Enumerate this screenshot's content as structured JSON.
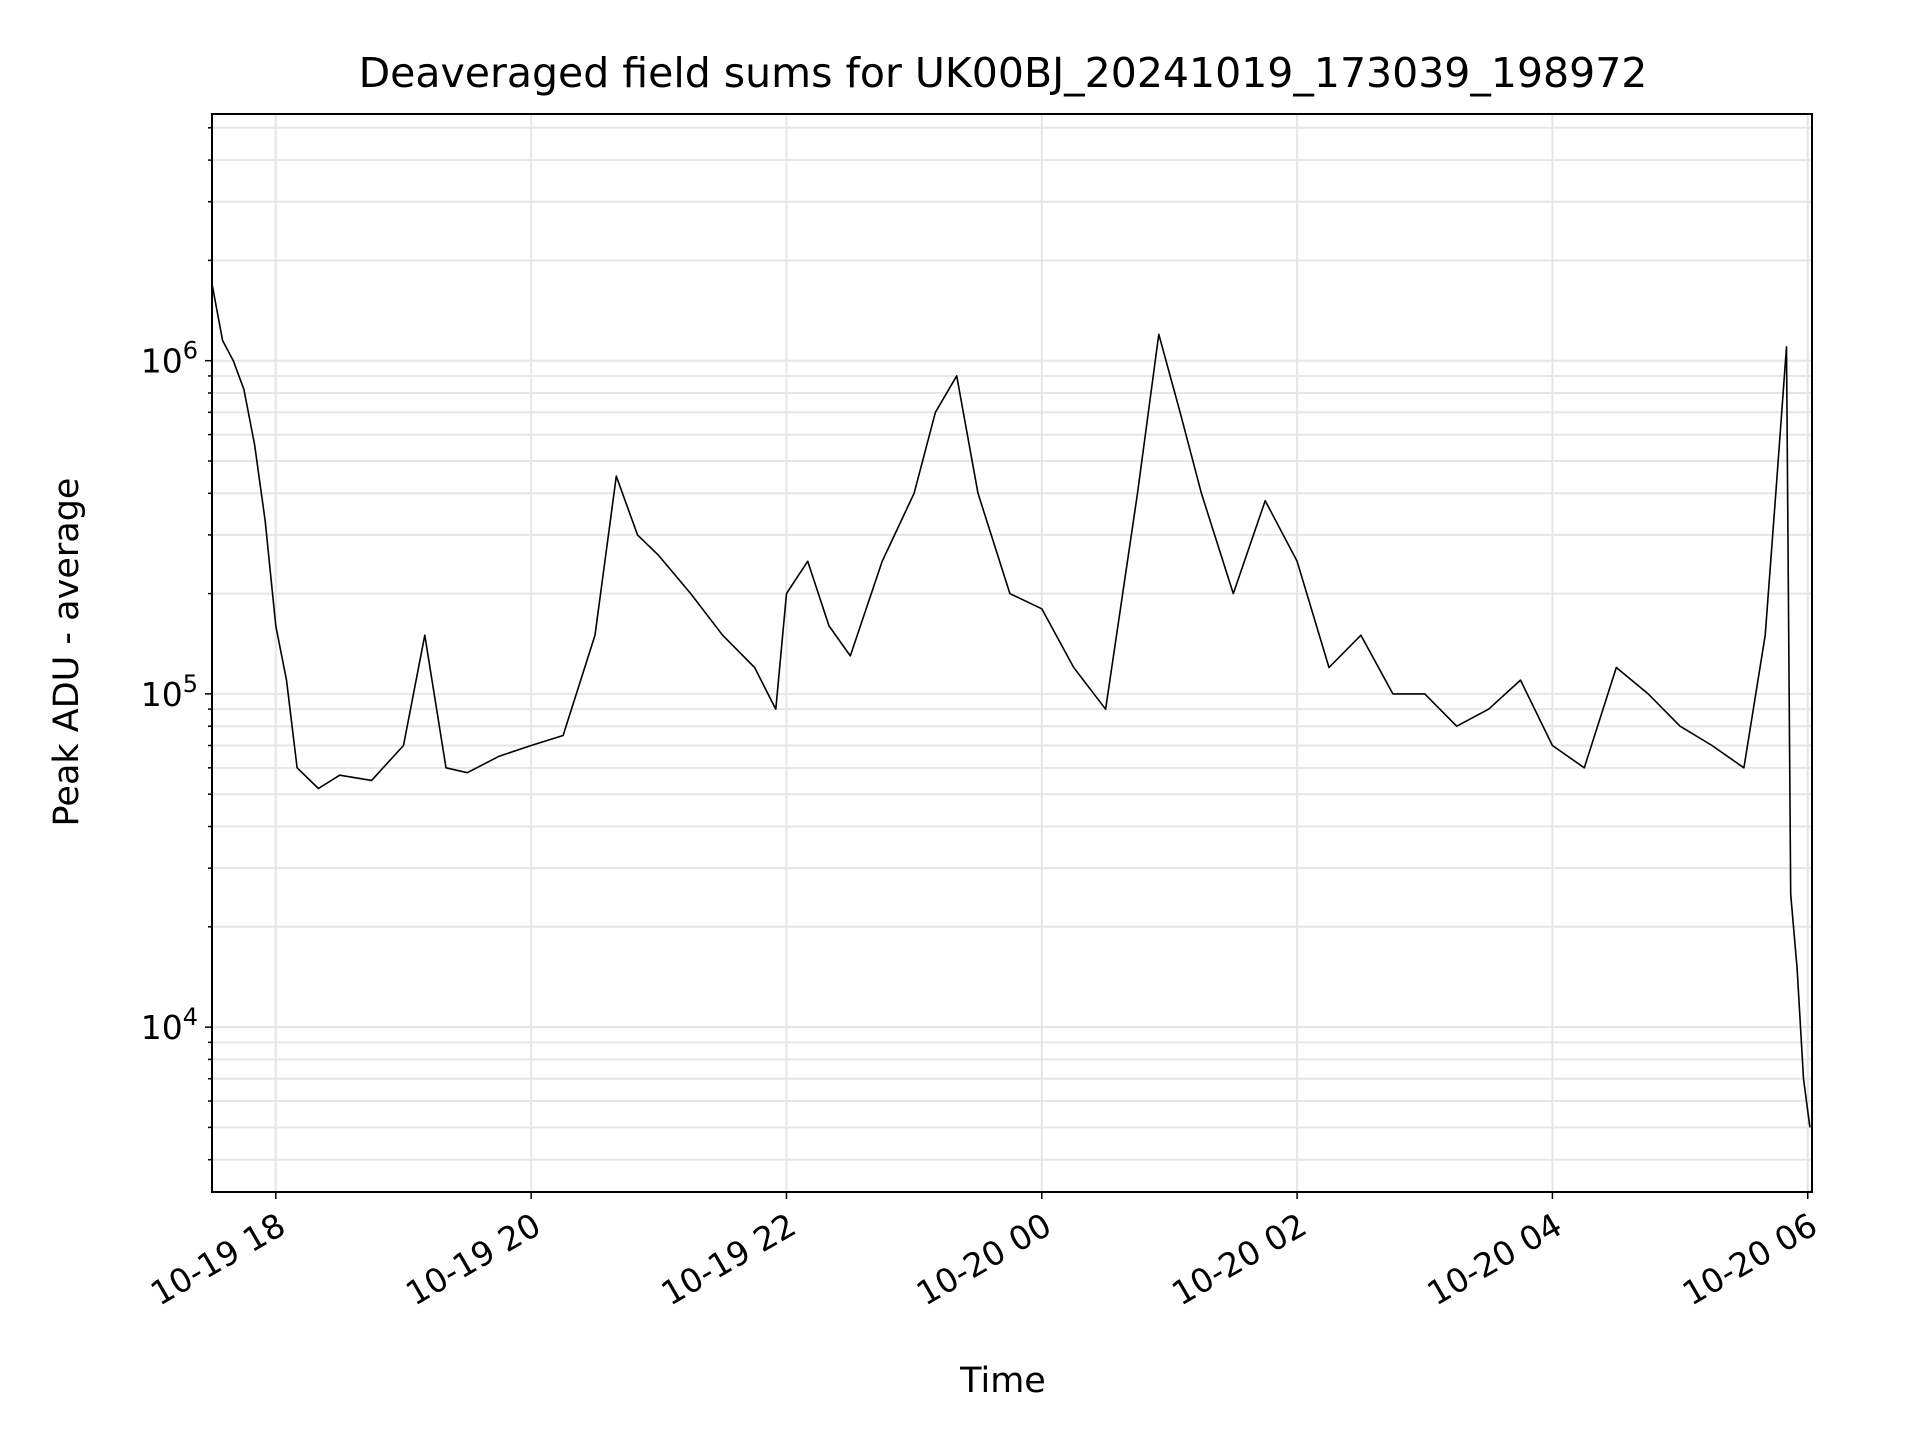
{
  "chart_data": {
    "type": "line",
    "title": "Deaveraged field sums for UK00BJ_20241019_173039_198972",
    "xlabel": "Time",
    "ylabel": "Peak ADU - average",
    "x_range": [
      "2024-10-19 17:30",
      "2024-10-20 06:02"
    ],
    "ylim": [
      3200,
      5500000
    ],
    "y_scale": "log",
    "grid": true,
    "legend": "none",
    "line_color": "#000000",
    "grid_color": "#e6e6e6",
    "x_ticks": [
      {
        "value": "2024-10-19 18:00",
        "label": "10-19 18"
      },
      {
        "value": "2024-10-19 20:00",
        "label": "10-19 20"
      },
      {
        "value": "2024-10-19 22:00",
        "label": "10-19 22"
      },
      {
        "value": "2024-10-20 00:00",
        "label": "10-20 00"
      },
      {
        "value": "2024-10-20 02:00",
        "label": "10-20 02"
      },
      {
        "value": "2024-10-20 04:00",
        "label": "10-20 04"
      },
      {
        "value": "2024-10-20 06:00",
        "label": "10-20 06"
      }
    ],
    "y_ticks": [
      {
        "value": 10000,
        "base": "10",
        "exp": "4"
      },
      {
        "value": 100000,
        "base": "10",
        "exp": "5"
      },
      {
        "value": 1000000,
        "base": "10",
        "exp": "6"
      }
    ],
    "series": [
      {
        "points": [
          [
            "2024-10-19 17:30",
            1700000
          ],
          [
            "2024-10-19 17:35",
            1150000
          ],
          [
            "2024-10-19 17:40",
            1000000
          ],
          [
            "2024-10-19 17:45",
            820000
          ],
          [
            "2024-10-19 17:50",
            560000
          ],
          [
            "2024-10-19 17:55",
            330000
          ],
          [
            "2024-10-19 18:00",
            160000
          ],
          [
            "2024-10-19 18:05",
            110000
          ],
          [
            "2024-10-19 18:10",
            60000
          ],
          [
            "2024-10-19 18:20",
            52000
          ],
          [
            "2024-10-19 18:30",
            57000
          ],
          [
            "2024-10-19 18:45",
            55000
          ],
          [
            "2024-10-19 19:00",
            70000
          ],
          [
            "2024-10-19 19:10",
            150000
          ],
          [
            "2024-10-19 19:20",
            60000
          ],
          [
            "2024-10-19 19:30",
            58000
          ],
          [
            "2024-10-19 19:45",
            65000
          ],
          [
            "2024-10-19 20:00",
            70000
          ],
          [
            "2024-10-19 20:15",
            75000
          ],
          [
            "2024-10-19 20:30",
            150000
          ],
          [
            "2024-10-19 20:40",
            450000
          ],
          [
            "2024-10-19 20:50",
            300000
          ],
          [
            "2024-10-19 21:00",
            260000
          ],
          [
            "2024-10-19 21:15",
            200000
          ],
          [
            "2024-10-19 21:30",
            150000
          ],
          [
            "2024-10-19 21:45",
            120000
          ],
          [
            "2024-10-19 21:55",
            90000
          ],
          [
            "2024-10-19 22:00",
            200000
          ],
          [
            "2024-10-19 22:10",
            250000
          ],
          [
            "2024-10-19 22:20",
            160000
          ],
          [
            "2024-10-19 22:30",
            130000
          ],
          [
            "2024-10-19 22:45",
            250000
          ],
          [
            "2024-10-19 23:00",
            400000
          ],
          [
            "2024-10-19 23:10",
            700000
          ],
          [
            "2024-10-19 23:20",
            900000
          ],
          [
            "2024-10-19 23:30",
            400000
          ],
          [
            "2024-10-19 23:45",
            200000
          ],
          [
            "2024-10-20 00:00",
            180000
          ],
          [
            "2024-10-20 00:15",
            120000
          ],
          [
            "2024-10-20 00:30",
            90000
          ],
          [
            "2024-10-20 00:45",
            400000
          ],
          [
            "2024-10-20 00:55",
            1200000
          ],
          [
            "2024-10-20 01:05",
            700000
          ],
          [
            "2024-10-20 01:15",
            400000
          ],
          [
            "2024-10-20 01:30",
            200000
          ],
          [
            "2024-10-20 01:45",
            380000
          ],
          [
            "2024-10-20 02:00",
            250000
          ],
          [
            "2024-10-20 02:15",
            120000
          ],
          [
            "2024-10-20 02:30",
            150000
          ],
          [
            "2024-10-20 02:45",
            100000
          ],
          [
            "2024-10-20 03:00",
            100000
          ],
          [
            "2024-10-20 03:15",
            80000
          ],
          [
            "2024-10-20 03:30",
            90000
          ],
          [
            "2024-10-20 03:45",
            110000
          ],
          [
            "2024-10-20 04:00",
            70000
          ],
          [
            "2024-10-20 04:15",
            60000
          ],
          [
            "2024-10-20 04:30",
            120000
          ],
          [
            "2024-10-20 04:45",
            100000
          ],
          [
            "2024-10-20 05:00",
            80000
          ],
          [
            "2024-10-20 05:15",
            70000
          ],
          [
            "2024-10-20 05:30",
            60000
          ],
          [
            "2024-10-20 05:40",
            150000
          ],
          [
            "2024-10-20 05:45",
            400000
          ],
          [
            "2024-10-20 05:50",
            1100000
          ],
          [
            "2024-10-20 05:52",
            25000
          ],
          [
            "2024-10-20 05:55",
            15000
          ],
          [
            "2024-10-20 05:58",
            7000
          ],
          [
            "2024-10-20 06:01",
            5000
          ]
        ]
      }
    ]
  }
}
